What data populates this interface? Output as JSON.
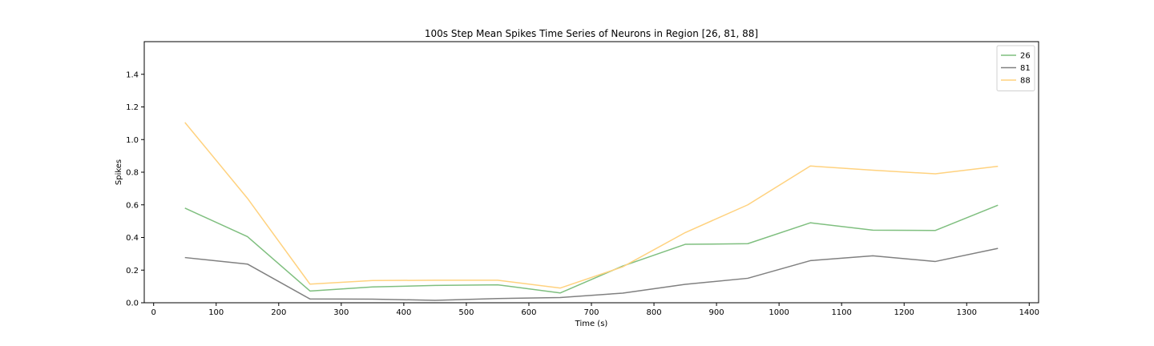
{
  "chart_data": {
    "type": "line",
    "title": "100s Step Mean Spikes Time Series of Neurons in Region [26, 81, 88]",
    "xlabel": "Time (s)",
    "ylabel": "Spikes",
    "xlim": [
      -15,
      1415
    ],
    "ylim": [
      0,
      1.6
    ],
    "xticks": [
      0,
      100,
      200,
      300,
      400,
      500,
      600,
      700,
      800,
      900,
      1000,
      1100,
      1200,
      1300,
      1400
    ],
    "yticks": [
      0.0,
      0.2,
      0.4,
      0.6,
      0.8,
      1.0,
      1.2,
      1.4
    ],
    "ytick_labels": [
      "0.0",
      "0.2",
      "0.4",
      "0.6",
      "0.8",
      "1.0",
      "1.2",
      "1.4"
    ],
    "grid": false,
    "legend_position": "top-right",
    "x": [
      50,
      150,
      250,
      350,
      450,
      550,
      650,
      750,
      850,
      950,
      1050,
      1150,
      1250,
      1350
    ],
    "series": [
      {
        "name": "26",
        "color": "#7fbf7f",
        "values": [
          0.58,
          0.405,
          0.072,
          0.097,
          0.106,
          0.11,
          0.06,
          0.225,
          0.358,
          0.362,
          0.49,
          0.445,
          0.443,
          0.598
        ]
      },
      {
        "name": "81",
        "color": "#808080",
        "values": [
          0.277,
          0.237,
          0.023,
          0.022,
          0.015,
          0.026,
          0.032,
          0.059,
          0.113,
          0.15,
          0.258,
          0.288,
          0.253,
          0.333
        ]
      },
      {
        "name": "88",
        "color": "#ffd27f",
        "values": [
          1.105,
          0.64,
          0.114,
          0.136,
          0.138,
          0.138,
          0.09,
          0.22,
          0.43,
          0.6,
          0.838,
          0.812,
          0.79,
          0.836
        ]
      }
    ]
  }
}
